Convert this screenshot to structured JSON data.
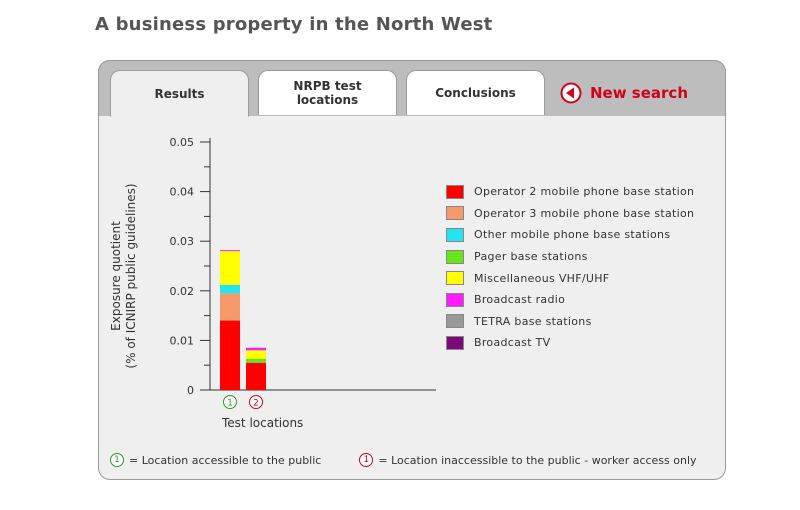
{
  "page": {
    "title": "A business property in the North West"
  },
  "tabs": [
    {
      "label": "Results",
      "active": true
    },
    {
      "label": "NRPB test\nlocations",
      "active": false
    },
    {
      "label": "Conclusions",
      "active": false
    }
  ],
  "new_search": {
    "label": "New search",
    "icon": "left-arrow-circle-icon"
  },
  "colors": {
    "accent_red": "#d0021b",
    "public_green": "#2a9a2a"
  },
  "chart_data": {
    "type": "bar",
    "stacked": true,
    "title": "",
    "xlabel": "Test locations",
    "ylabel": "Exposure quotient\n(% of ICNIRP public guidelines)",
    "ylim": [
      0,
      0.05
    ],
    "yticks": [
      "0",
      "0.01",
      "0.02",
      "0.03",
      "0.04",
      "0.05"
    ],
    "ytick_values": [
      0,
      0.01,
      0.02,
      0.03,
      0.04,
      0.05
    ],
    "categories": [
      "1",
      "2"
    ],
    "category_access": [
      "public",
      "worker"
    ],
    "series": [
      {
        "name": "Operator 2 mobile phone base station",
        "color": "#ff0000",
        "values": [
          0.014,
          0.0055
        ]
      },
      {
        "name": "Operator 3 mobile phone base station",
        "color": "#f79a6b",
        "values": [
          0.0055,
          0.0
        ]
      },
      {
        "name": "Other mobile phone base stations",
        "color": "#22e5f0",
        "values": [
          0.0017,
          0.0
        ]
      },
      {
        "name": "Pager base stations",
        "color": "#66e61a",
        "values": [
          0.0,
          0.0008
        ]
      },
      {
        "name": "Miscellaneous VHF/UHF",
        "color": "#ffff00",
        "values": [
          0.0068,
          0.0017
        ]
      },
      {
        "name": "Broadcast radio",
        "color": "#ff1aff",
        "values": [
          0.0002,
          0.0005
        ]
      },
      {
        "name": "TETRA base stations",
        "color": "#999999",
        "values": [
          0.0,
          0.0
        ]
      },
      {
        "name": "Broadcast TV",
        "color": "#7a0a7a",
        "values": [
          0.0,
          0.0
        ]
      }
    ],
    "legend_position": "right",
    "grid": false
  },
  "footer": {
    "public_marker": "1",
    "public_text": "= Location accessible to the public",
    "worker_marker": "1",
    "worker_text": "= Location inaccessible to the public - worker access only"
  }
}
